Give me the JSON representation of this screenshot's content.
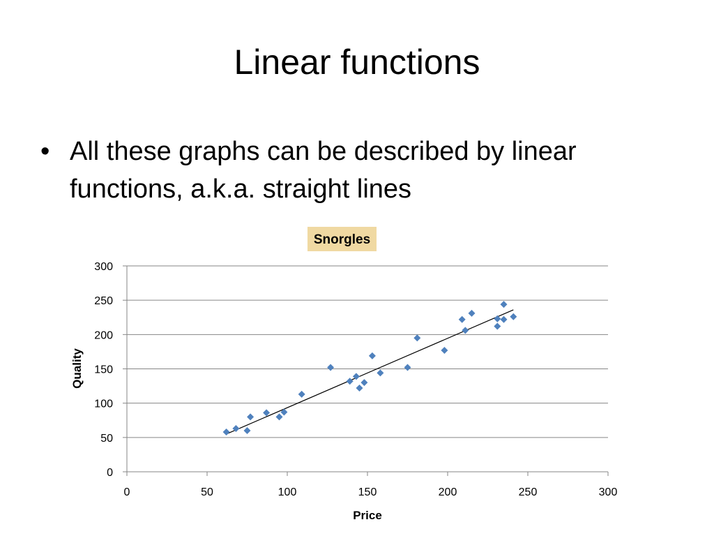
{
  "slide": {
    "title": "Linear functions",
    "bullet": "All these graphs can be described by linear functions, a.k.a. straight lines",
    "bullet_symbol": "•"
  },
  "colors": {
    "marker": "#4f81bd",
    "gridline": "#868686",
    "trendline": "#000000",
    "title_highlight": "#f0d9a2"
  },
  "chart_data": {
    "type": "scatter",
    "title": "Snorgles",
    "xlabel": "Price",
    "ylabel": "Quality",
    "xlim": [
      0,
      300
    ],
    "ylim": [
      0,
      300
    ],
    "xticks": [
      0,
      50,
      100,
      150,
      200,
      250,
      300
    ],
    "yticks": [
      0,
      50,
      100,
      150,
      200,
      250,
      300
    ],
    "grid": "horizontal",
    "legend": "none",
    "marker": "diamond",
    "points": [
      {
        "x": 62,
        "y": 58
      },
      {
        "x": 68,
        "y": 63
      },
      {
        "x": 75,
        "y": 60
      },
      {
        "x": 77,
        "y": 80
      },
      {
        "x": 87,
        "y": 86
      },
      {
        "x": 95,
        "y": 80
      },
      {
        "x": 98,
        "y": 87
      },
      {
        "x": 109,
        "y": 113
      },
      {
        "x": 127,
        "y": 152
      },
      {
        "x": 139,
        "y": 132
      },
      {
        "x": 143,
        "y": 139
      },
      {
        "x": 145,
        "y": 122
      },
      {
        "x": 148,
        "y": 130
      },
      {
        "x": 153,
        "y": 169
      },
      {
        "x": 158,
        "y": 144
      },
      {
        "x": 175,
        "y": 152
      },
      {
        "x": 181,
        "y": 195
      },
      {
        "x": 198,
        "y": 177
      },
      {
        "x": 209,
        "y": 222
      },
      {
        "x": 211,
        "y": 206
      },
      {
        "x": 215,
        "y": 231
      },
      {
        "x": 231,
        "y": 223
      },
      {
        "x": 231,
        "y": 212
      },
      {
        "x": 235,
        "y": 244
      },
      {
        "x": 235,
        "y": 222
      },
      {
        "x": 241,
        "y": 226
      }
    ],
    "trendline": {
      "x": [
        62,
        241
      ],
      "y": [
        55,
        236
      ]
    }
  }
}
